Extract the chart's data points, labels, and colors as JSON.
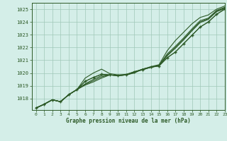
{
  "title": "Graphe pression niveau de la mer (hPa)",
  "bg_color": "#d4eee8",
  "grid_color": "#a0c8b8",
  "line_color": "#2d5a27",
  "xlim": [
    -0.5,
    23
  ],
  "ylim": [
    1017.1,
    1025.5
  ],
  "xticks": [
    0,
    1,
    2,
    3,
    4,
    5,
    6,
    7,
    8,
    9,
    10,
    11,
    12,
    13,
    14,
    15,
    16,
    17,
    18,
    19,
    20,
    21,
    22,
    23
  ],
  "yticks": [
    1018,
    1019,
    1020,
    1021,
    1022,
    1023,
    1024,
    1025
  ],
  "series": [
    [
      1017.25,
      1017.55,
      1017.9,
      1017.75,
      1018.3,
      1018.7,
      1019.05,
      1019.3,
      1019.6,
      1019.85,
      1019.8,
      1019.85,
      1020.0,
      1020.3,
      1020.45,
      1020.6,
      1021.35,
      1021.95,
      1022.6,
      1023.3,
      1023.95,
      1024.2,
      1024.8,
      1025.05
    ],
    [
      1017.25,
      1017.55,
      1017.9,
      1017.75,
      1018.3,
      1018.7,
      1019.1,
      1019.4,
      1019.7,
      1019.85,
      1019.8,
      1019.85,
      1020.05,
      1020.3,
      1020.45,
      1020.6,
      1021.4,
      1022.0,
      1022.65,
      1023.35,
      1024.0,
      1024.25,
      1024.85,
      1025.1
    ],
    [
      1017.25,
      1017.55,
      1017.9,
      1017.75,
      1018.3,
      1018.7,
      1019.15,
      1019.5,
      1019.8,
      1019.85,
      1019.8,
      1019.85,
      1020.05,
      1020.3,
      1020.45,
      1020.6,
      1021.5,
      1022.1,
      1022.75,
      1023.45,
      1024.1,
      1024.3,
      1024.9,
      1025.15
    ],
    [
      1017.25,
      1017.55,
      1017.9,
      1017.75,
      1018.3,
      1018.7,
      1019.35,
      1019.65,
      1019.9,
      1019.85,
      1019.8,
      1019.85,
      1020.1,
      1020.25,
      1020.45,
      1020.55,
      1021.2,
      1021.65,
      1022.3,
      1022.95,
      1023.6,
      1024.0,
      1024.6,
      1025.0
    ]
  ],
  "marker_series": [
    1017.25,
    1017.55,
    1017.9,
    1017.75,
    1018.3,
    1018.7,
    1019.35,
    1019.65,
    1019.9,
    1019.85,
    1019.8,
    1019.85,
    1020.1,
    1020.25,
    1020.45,
    1020.55,
    1021.2,
    1021.65,
    1022.3,
    1022.95,
    1023.6,
    1024.0,
    1024.6,
    1025.0
  ],
  "upper_series": [
    1017.25,
    1017.55,
    1017.9,
    1017.75,
    1018.3,
    1018.7,
    1019.6,
    1020.0,
    1020.3,
    1019.95,
    1019.85,
    1019.9,
    1020.1,
    1020.3,
    1020.5,
    1020.65,
    1021.75,
    1022.55,
    1023.2,
    1023.85,
    1024.35,
    1024.55,
    1025.0,
    1025.25
  ]
}
